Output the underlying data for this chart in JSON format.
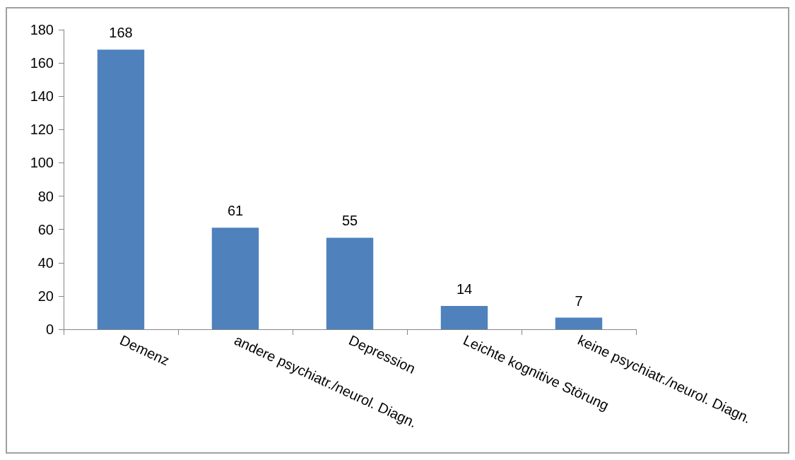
{
  "chart_data": {
    "type": "bar",
    "categories": [
      "Demenz",
      "andere psychiatr./neurol. Diagn.",
      "Depression",
      "Leichte kognitive Störung",
      "keine psychiatr./neurol. Diagn."
    ],
    "values": [
      168,
      61,
      55,
      14,
      7
    ],
    "color": "#4f81bd",
    "ylim": [
      0,
      180
    ],
    "yticks": [
      0,
      20,
      40,
      60,
      80,
      100,
      120,
      140,
      160,
      180
    ],
    "grid": false,
    "data_labels": true
  }
}
